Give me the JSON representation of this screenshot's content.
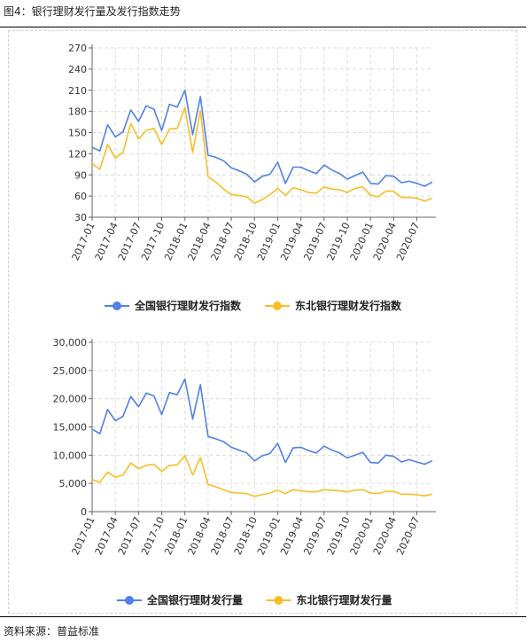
{
  "figure": {
    "title": "图4：银行理财发行量及发行指数走势",
    "source": "资料来源：普益标准"
  },
  "colors": {
    "national": "#4f81e8",
    "northeast": "#f8be26"
  },
  "chart_data": [
    {
      "type": "line",
      "x_tick_labels": [
        "2017-01",
        "2017-04",
        "2017-07",
        "2017-10",
        "2018-01",
        "2018-04",
        "2018-07",
        "2018-10",
        "2019-01",
        "2019-04",
        "2019-07",
        "2019-10",
        "2020-01",
        "2020-04",
        "2020-07"
      ],
      "yticks": [
        "30",
        "60",
        "90",
        "120",
        "150",
        "180",
        "210",
        "240",
        "270"
      ],
      "ylim": [
        30,
        270
      ],
      "grid": true,
      "legend_position": "bottom-center",
      "series": [
        {
          "name": "全国银行理财发行指数",
          "color": "#4f81e8",
          "values": [
            129,
            124,
            161,
            144,
            151,
            182,
            166,
            188,
            183,
            153,
            190,
            186,
            210,
            147,
            201,
            118,
            115,
            110,
            100,
            96,
            91,
            80,
            88,
            91,
            108,
            78,
            101,
            101,
            96,
            92,
            104,
            97,
            92,
            84,
            89,
            94,
            78,
            77,
            89,
            88,
            79,
            81,
            78,
            74,
            80
          ]
        },
        {
          "name": "东北银行理财发行指数",
          "color": "#f8be26",
          "values": [
            106,
            98,
            133,
            114,
            122,
            163,
            141,
            153,
            156,
            133,
            155,
            156,
            185,
            122,
            181,
            87,
            80,
            70,
            62,
            61,
            59,
            50,
            55,
            62,
            71,
            61,
            72,
            69,
            65,
            64,
            73,
            70,
            69,
            65,
            71,
            73,
            61,
            59,
            67,
            67,
            58,
            58,
            57,
            53,
            57
          ]
        }
      ]
    },
    {
      "type": "line",
      "x_tick_labels": [
        "2017-01",
        "2017-04",
        "2017-07",
        "2017-10",
        "2018-01",
        "2018-04",
        "2018-07",
        "2018-10",
        "2019-01",
        "2019-04",
        "2019-07",
        "2019-10",
        "2020-01",
        "2020-04",
        "2020-07"
      ],
      "yticks": [
        "0",
        "5,000",
        "10,000",
        "15,000",
        "20,000",
        "25,000",
        "30,000"
      ],
      "ylim": [
        0,
        30000
      ],
      "grid": true,
      "legend_position": "bottom-center",
      "series": [
        {
          "name": "全国银行理财发行量",
          "color": "#4f81e8",
          "values": [
            14600,
            13800,
            18100,
            16100,
            16900,
            20400,
            18600,
            21000,
            20500,
            17200,
            21100,
            20700,
            23500,
            16400,
            22500,
            13300,
            12900,
            12400,
            11400,
            10900,
            10400,
            9000,
            9900,
            10300,
            12100,
            8700,
            11300,
            11400,
            10800,
            10400,
            11600,
            10900,
            10400,
            9500,
            10000,
            10500,
            8700,
            8600,
            10000,
            9800,
            8800,
            9200,
            8800,
            8400,
            9000
          ]
        },
        {
          "name": "东北银行理财发行量",
          "color": "#f8be26",
          "values": [
            5700,
            5200,
            7000,
            6100,
            6500,
            8600,
            7600,
            8200,
            8400,
            7100,
            8200,
            8300,
            9900,
            6500,
            9600,
            4800,
            4400,
            3900,
            3400,
            3300,
            3200,
            2700,
            3000,
            3300,
            3800,
            3200,
            3900,
            3700,
            3500,
            3500,
            3900,
            3800,
            3700,
            3500,
            3800,
            3900,
            3300,
            3200,
            3600,
            3600,
            3100,
            3100,
            3000,
            2800,
            3100
          ]
        }
      ]
    }
  ]
}
